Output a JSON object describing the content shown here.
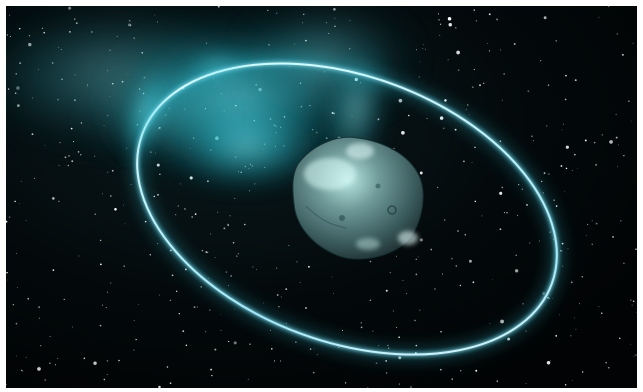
{
  "image": {
    "subject": "illustration",
    "colors": {
      "space": "#020608",
      "frame": "#ffffff",
      "glow": "#35d6e6",
      "ring": "#e8ffff",
      "ring_edge": "#6fe6ff",
      "body_dark": "#2f4b4d",
      "body_mid": "#6f9a99",
      "body_light": "#b9e6e2"
    }
  }
}
